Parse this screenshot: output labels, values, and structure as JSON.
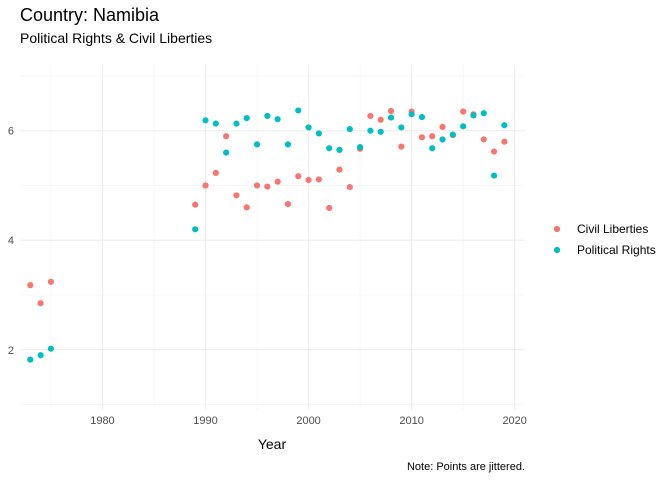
{
  "chart_data": {
    "type": "scatter",
    "title": "Country: Namibia",
    "subtitle": "Political Rights & Civil Liberties",
    "xlabel": "Year",
    "ylabel": "",
    "caption": "Note: Points are jittered.",
    "xlim": [
      1972,
      2021
    ],
    "ylim": [
      0.9,
      7.2
    ],
    "x_ticks": [
      1980,
      1990,
      2000,
      2010,
      2020
    ],
    "y_ticks": [
      2,
      4,
      6
    ],
    "grid": true,
    "legend_position": "right",
    "series": [
      {
        "name": "Civil Liberties",
        "color": "#F8766D",
        "points": [
          [
            1973,
            3.18
          ],
          [
            1974,
            2.85
          ],
          [
            1975,
            3.24
          ],
          [
            1989,
            4.65
          ],
          [
            1990,
            5.0
          ],
          [
            1991,
            5.23
          ],
          [
            1992,
            5.9
          ],
          [
            1993,
            4.82
          ],
          [
            1994,
            4.6
          ],
          [
            1995,
            5.0
          ],
          [
            1996,
            4.98
          ],
          [
            1997,
            5.07
          ],
          [
            1998,
            4.66
          ],
          [
            1999,
            5.17
          ],
          [
            2000,
            5.1
          ],
          [
            2001,
            5.11
          ],
          [
            2002,
            4.59
          ],
          [
            2003,
            5.29
          ],
          [
            2004,
            4.97
          ],
          [
            2005,
            5.67
          ],
          [
            2006,
            6.27
          ],
          [
            2007,
            6.2
          ],
          [
            2008,
            6.36
          ],
          [
            2009,
            5.71
          ],
          [
            2010,
            6.35
          ],
          [
            2011,
            5.88
          ],
          [
            2012,
            5.9
          ],
          [
            2013,
            6.07
          ],
          [
            2014,
            5.92
          ],
          [
            2015,
            6.35
          ],
          [
            2016,
            6.3
          ],
          [
            2017,
            5.84
          ],
          [
            2018,
            5.62
          ],
          [
            2019,
            5.8
          ]
        ]
      },
      {
        "name": "Political Rights",
        "color": "#00BFC4",
        "points": [
          [
            1973,
            1.82
          ],
          [
            1974,
            1.9
          ],
          [
            1975,
            2.02
          ],
          [
            1989,
            4.2
          ],
          [
            1990,
            6.19
          ],
          [
            1991,
            6.13
          ],
          [
            1992,
            5.6
          ],
          [
            1993,
            6.13
          ],
          [
            1994,
            6.23
          ],
          [
            1995,
            5.75
          ],
          [
            1996,
            6.27
          ],
          [
            1997,
            6.21
          ],
          [
            1998,
            5.75
          ],
          [
            1999,
            6.37
          ],
          [
            2000,
            6.06
          ],
          [
            2001,
            5.95
          ],
          [
            2002,
            5.68
          ],
          [
            2003,
            5.65
          ],
          [
            2004,
            6.03
          ],
          [
            2005,
            5.7
          ],
          [
            2006,
            6.0
          ],
          [
            2007,
            5.98
          ],
          [
            2008,
            6.24
          ],
          [
            2009,
            6.06
          ],
          [
            2010,
            6.3
          ],
          [
            2011,
            6.25
          ],
          [
            2012,
            5.68
          ],
          [
            2013,
            5.84
          ],
          [
            2014,
            5.93
          ],
          [
            2015,
            6.08
          ],
          [
            2016,
            6.28
          ],
          [
            2017,
            6.32
          ],
          [
            2018,
            5.18
          ],
          [
            2019,
            6.1
          ]
        ]
      }
    ]
  }
}
